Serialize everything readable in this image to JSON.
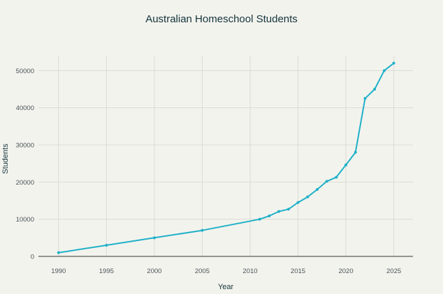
{
  "chart_data": {
    "type": "line",
    "title": "Australian Homeschool Students",
    "xlabel": "Year",
    "ylabel": "Students",
    "xlim": [
      1987.9,
      2027
    ],
    "ylim": [
      0,
      54000
    ],
    "xticks": [
      1990,
      1995,
      2000,
      2005,
      2010,
      2015,
      2020,
      2025
    ],
    "yticks": [
      0,
      10000,
      20000,
      30000,
      40000,
      50000
    ],
    "grid": true,
    "legend": "none",
    "colors": {
      "line": "#20b1c8",
      "grid": "#dcdcd6",
      "axis": "#333333",
      "background": "#f3f3ee"
    },
    "series": [
      {
        "points": [
          [
            1990,
            1000
          ],
          [
            1995,
            3000
          ],
          [
            2000,
            5000
          ],
          [
            2005,
            7000
          ],
          [
            2011,
            10000
          ],
          [
            2012,
            10900
          ],
          [
            2013,
            12100
          ],
          [
            2014,
            12700
          ],
          [
            2015,
            14500
          ],
          [
            2016,
            16000
          ],
          [
            2017,
            18000
          ],
          [
            2018,
            20200
          ],
          [
            2019,
            21300
          ],
          [
            2020,
            24600
          ],
          [
            2021,
            28000
          ],
          [
            2022,
            42500
          ],
          [
            2023,
            45000
          ],
          [
            2024,
            50000
          ],
          [
            2025,
            52000
          ]
        ]
      }
    ]
  }
}
